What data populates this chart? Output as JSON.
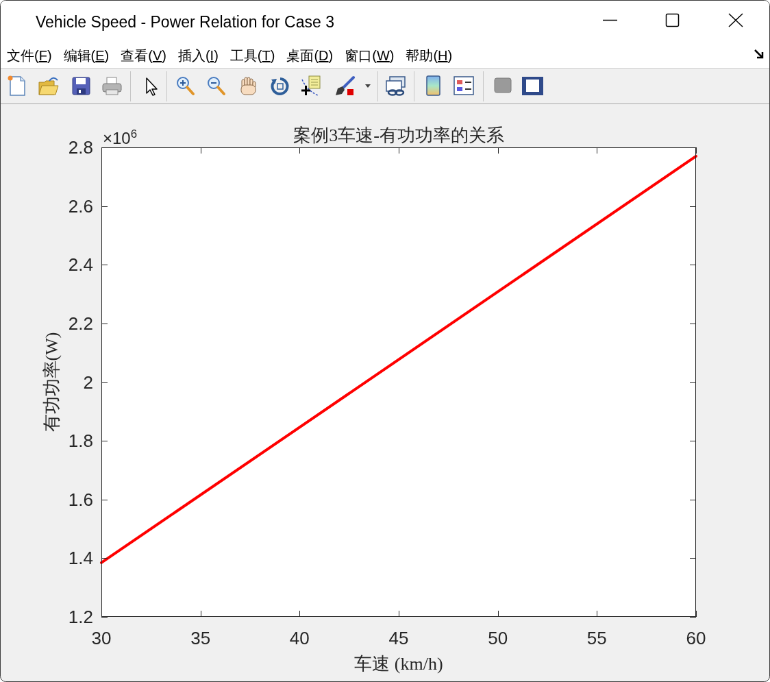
{
  "chart_data": {
    "type": "line",
    "title": "案例3车速-有功功率的关系",
    "xlabel": "车速 (km/h)",
    "ylabel": "有功功率(W)",
    "x": [
      30,
      40,
      50,
      60
    ],
    "series": [
      {
        "color": "#ff0000",
        "values": [
          1.385,
          1.846,
          2.308,
          2.77
        ]
      }
    ],
    "xlim": [
      30,
      60
    ],
    "ylim": [
      1.2,
      2.8
    ],
    "xticks": [
      30,
      35,
      40,
      45,
      50,
      55,
      60
    ],
    "yticks": [
      1.2,
      1.4,
      1.6,
      1.8,
      2,
      2.2,
      2.4,
      2.6,
      2.8
    ],
    "line_style": "solid",
    "annotations": [
      "Vehicle Speed - Power Relation for Case 3",
      "文件(F)",
      "编辑(E)",
      "查看(V)",
      "插入(I)",
      "工具(T)",
      "桌面(D)",
      "窗口(W)",
      "帮助(H)",
      "×10$^{6}$"
    ]
  }
}
